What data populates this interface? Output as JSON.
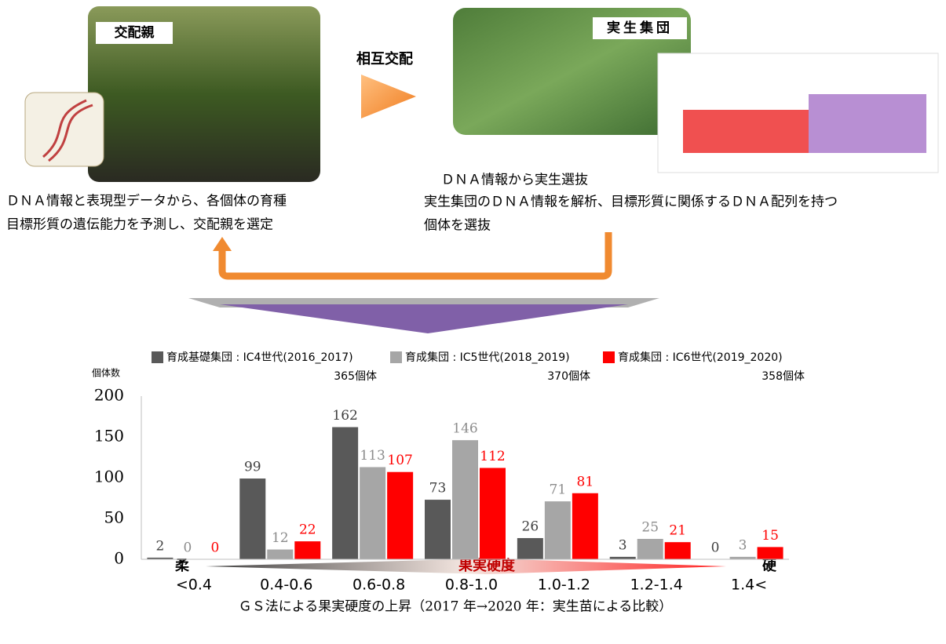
{
  "diagram": {
    "parent_label": "交配親",
    "cross_label": "相互交配",
    "seedling_label": "実生集団",
    "parent_text": [
      "ＤＮＡ情報と表現型データから、各個体の育種",
      "目標形質の遺伝能力を予測し、交配親を選定"
    ],
    "seedling_title": "ＤＮＡ情報から実生選抜",
    "seedling_text": [
      "実生集団のＤＮＡ情報を解析、目標形質に関係するＤＮＡ配列を持つ",
      "個体を選抜"
    ]
  },
  "chart_data": {
    "type": "bar",
    "y_label": "個体数",
    "x_label": "ＧＳ法による果実硬度の上昇（2017 年→2020 年：実生苗による比較）",
    "categories": [
      "<0.4",
      "0.4-0.6",
      "0.6-0.8",
      "0.8-1.0",
      "1.0-1.2",
      "1.2-1.4",
      "1.4<"
    ],
    "series": [
      {
        "name": "育成基礎集団 : IC4世代(2016_2017)",
        "color": "#595959",
        "label_color": "#404040",
        "values": [
          2,
          99,
          162,
          73,
          26,
          3,
          0
        ]
      },
      {
        "name": "育成集団 : IC5世代(2018_2019)",
        "color": "#a6a6a6",
        "label_color": "#8c8c8c",
        "values": [
          0,
          12,
          113,
          146,
          71,
          25,
          3
        ]
      },
      {
        "name": "育成集団 : IC6世代(2019_2020)",
        "color": "#ff0000",
        "label_color": "#ff0000",
        "values": [
          0,
          22,
          107,
          112,
          81,
          21,
          15
        ]
      }
    ],
    "legend_counts": [
      "365個体",
      "370個体",
      "358個体"
    ],
    "ylim": [
      0,
      200
    ],
    "yticks": [
      0,
      50,
      100,
      150,
      200
    ],
    "grid": false,
    "scale": {
      "low": "柔",
      "middle": "果実硬度",
      "high": "硬"
    }
  }
}
